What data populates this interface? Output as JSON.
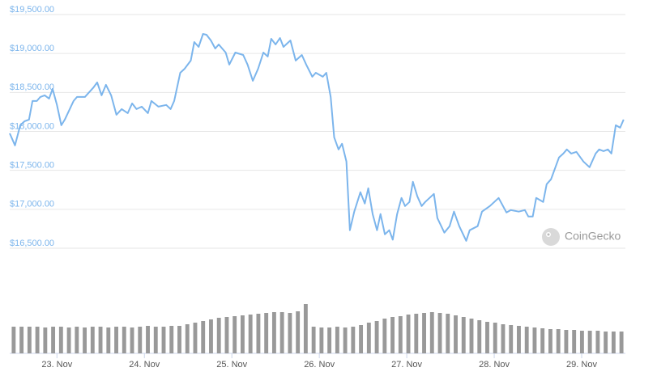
{
  "chart_data": {
    "type": "line",
    "color": "#7cb5ec",
    "xlim": [
      -0.54,
      6.5
    ],
    "ylim": [
      16500,
      19500
    ],
    "grid": true,
    "xticks": [
      {
        "value": 0,
        "label": "23. Nov"
      },
      {
        "value": 1,
        "label": "24. Nov"
      },
      {
        "value": 2,
        "label": "25. Nov"
      },
      {
        "value": 3,
        "label": "26. Nov"
      },
      {
        "value": 4,
        "label": "27. Nov"
      },
      {
        "value": 5,
        "label": "28. Nov"
      },
      {
        "value": 6,
        "label": "29. Nov"
      }
    ],
    "yticks": [
      {
        "value": 16500,
        "label": "$16,500.00"
      },
      {
        "value": 17000,
        "label": "$17,000.00"
      },
      {
        "value": 17500,
        "label": "$17,500.00"
      },
      {
        "value": 18000,
        "label": "$18,000.00"
      },
      {
        "value": 18500,
        "label": "$18,500.00"
      },
      {
        "value": 19000,
        "label": "$19,000.00"
      },
      {
        "value": 19500,
        "label": "$19,500.00"
      }
    ],
    "x": [
      -0.54,
      -0.48,
      -0.42,
      -0.37,
      -0.32,
      -0.28,
      -0.23,
      -0.19,
      -0.14,
      -0.09,
      -0.05,
      0,
      0.05,
      0.09,
      0.19,
      0.23,
      0.32,
      0.42,
      0.46,
      0.51,
      0.56,
      0.62,
      0.68,
      0.74,
      0.81,
      0.86,
      0.91,
      0.97,
      1.04,
      1.08,
      1.16,
      1.25,
      1.3,
      1.34,
      1.41,
      1.46,
      1.53,
      1.57,
      1.62,
      1.67,
      1.71,
      1.76,
      1.81,
      1.85,
      1.93,
      1.97,
      2.04,
      2.13,
      2.18,
      2.24,
      2.3,
      2.36,
      2.41,
      2.45,
      2.5,
      2.55,
      2.59,
      2.67,
      2.73,
      2.8,
      2.85,
      2.92,
      2.96,
      3.04,
      3.08,
      3.13,
      3.17,
      3.22,
      3.26,
      3.31,
      3.35,
      3.4,
      3.47,
      3.52,
      3.56,
      3.61,
      3.66,
      3.7,
      3.75,
      3.8,
      3.84,
      3.89,
      3.94,
      3.98,
      4.03,
      4.07,
      4.12,
      4.17,
      4.21,
      4.31,
      4.35,
      4.43,
      4.49,
      4.54,
      4.6,
      4.68,
      4.72,
      4.81,
      4.86,
      4.95,
      5.05,
      5.14,
      5.19,
      5.28,
      5.35,
      5.39,
      5.44,
      5.48,
      5.56,
      5.6,
      5.65,
      5.74,
      5.79,
      5.83,
      5.88,
      5.94,
      6.02,
      6.09,
      6.16,
      6.2,
      6.25,
      6.3,
      6.34,
      6.39,
      6.44,
      6.48
    ],
    "values": [
      17975,
      17820,
      18079,
      18131,
      18152,
      18390,
      18390,
      18442,
      18463,
      18421,
      18546,
      18339,
      18079,
      18152,
      18390,
      18442,
      18442,
      18567,
      18629,
      18463,
      18598,
      18463,
      18214,
      18287,
      18235,
      18359,
      18287,
      18318,
      18235,
      18390,
      18318,
      18339,
      18287,
      18390,
      18753,
      18805,
      18909,
      19147,
      19085,
      19251,
      19241,
      19168,
      19064,
      19116,
      19012,
      18857,
      19012,
      18981,
      18857,
      18650,
      18805,
      19012,
      18961,
      19189,
      19116,
      19199,
      19085,
      19168,
      18909,
      18981,
      18857,
      18702,
      18753,
      18702,
      18753,
      18442,
      17924,
      17768,
      17841,
      17613,
      16731,
      16970,
      17219,
      17074,
      17270,
      16939,
      16731,
      16939,
      16679,
      16731,
      16610,
      16939,
      17146,
      17042,
      17094,
      17353,
      17167,
      17042,
      17094,
      17198,
      16887,
      16700,
      16783,
      16970,
      16783,
      16596,
      16731,
      16783,
      16970,
      17042,
      17146,
      16959,
      16990,
      16970,
      16990,
      16907,
      16907,
      17146,
      17094,
      17322,
      17385,
      17665,
      17716,
      17768,
      17716,
      17737,
      17613,
      17540,
      17716,
      17768,
      17747,
      17768,
      17716,
      18079,
      18048,
      18152
    ],
    "volume": {
      "color": "#999999",
      "values": [
        33,
        33,
        33,
        33,
        32,
        33,
        33,
        32,
        33,
        32,
        33,
        33,
        32,
        33,
        33,
        32,
        33,
        34,
        33,
        33,
        34,
        34,
        36,
        38,
        40,
        42,
        44,
        45,
        46,
        47,
        48,
        49,
        50,
        51,
        51,
        50,
        52,
        61,
        33,
        32,
        32,
        33,
        32,
        33,
        35,
        38,
        40,
        43,
        45,
        46,
        48,
        49,
        50,
        51,
        50,
        49,
        47,
        45,
        43,
        41,
        39,
        38,
        36,
        35,
        34,
        33,
        32,
        31,
        30,
        30,
        29,
        29,
        28,
        28,
        28,
        27,
        27,
        27
      ]
    },
    "watermark": "CoinGecko"
  }
}
